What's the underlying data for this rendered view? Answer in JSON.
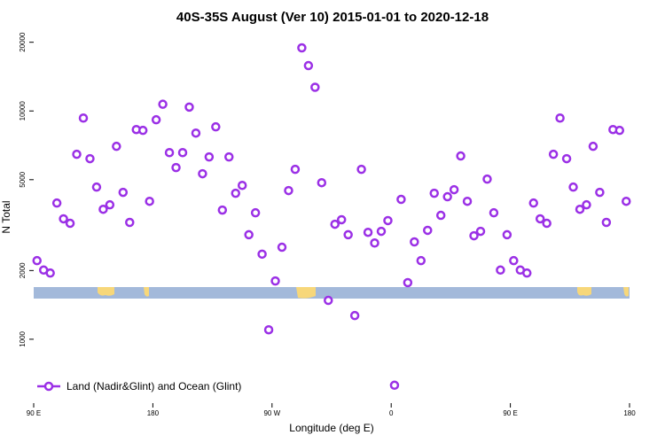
{
  "chart_data": {
    "type": "scatter",
    "title": "40S-35S August (Ver 10)   2015-01-01 to 2020-12-18",
    "x_label": "Longitude (deg E)",
    "y_label": "N Total",
    "log_y": true,
    "xlim": [
      90,
      540
    ],
    "ylim": [
      525,
      22400
    ],
    "xticks": [
      {
        "value": 90,
        "label": "90 E"
      },
      180,
      {
        "value": 270,
        "label": "90 W"
      },
      {
        "value": 360,
        "label": "0"
      },
      {
        "value": 450,
        "label": "90 E"
      },
      {
        "value": 540,
        "label": "180"
      }
    ],
    "yticks": [
      1000,
      2000,
      5000,
      10000,
      20000
    ],
    "legend": "bottom-left",
    "series": [
      {
        "name": "Land (Nadir&Glint) and Ocean (Glint)",
        "color": "#9b30e6",
        "x": [
          92.5,
          97.5,
          102.5,
          107.5,
          112.5,
          117.5,
          122.5,
          127.5,
          132.5,
          137.5,
          142.5,
          147.5,
          152.5,
          157.5,
          162.5,
          167.5,
          172.5,
          177.5,
          182.5,
          187.5,
          192.5,
          197.5,
          202.5,
          207.5,
          212.5,
          217.5,
          222.5,
          227.5,
          232.5,
          237.5,
          242.5,
          247.5,
          252.5,
          257.5,
          262.5,
          267.5,
          272.5,
          277.5,
          282.5,
          287.5,
          292.5,
          297.5,
          302.5,
          307.5,
          312.5,
          317.5,
          322.5,
          327.5,
          332.5,
          337.5,
          342.5,
          347.5,
          352.5,
          357.5,
          362.5,
          367.5,
          372.5,
          377.5,
          382.5,
          387.5,
          392.5,
          397.5,
          402.5,
          407.5,
          412.5,
          417.5,
          422.5,
          427.5,
          432.5,
          437.5,
          442.5,
          447.5,
          452.5,
          457.5,
          462.5,
          467.5,
          472.5,
          477.5,
          482.5,
          487.5,
          492.5,
          497.5,
          502.5,
          507.5,
          512.5,
          517.5,
          522.5,
          527.5,
          532.5,
          537.5
        ],
        "values": [
          2210,
          2010,
          1950,
          3950,
          3370,
          3220,
          6460,
          9310,
          6180,
          4640,
          3710,
          3880,
          7000,
          4400,
          3250,
          8290,
          8220,
          4020,
          9150,
          10700,
          6570,
          5650,
          6570,
          10400,
          8000,
          5310,
          6290,
          8520,
          3680,
          6290,
          4360,
          4720,
          2870,
          3580,
          2360,
          1100,
          1800,
          2530,
          4480,
          5550,
          18900,
          15800,
          12700,
          4850,
          1480,
          3190,
          3340,
          2870,
          1270,
          5550,
          2940,
          2640,
          2970,
          3310,
          629,
          4100,
          1770,
          2670,
          2210,
          3000,
          4360,
          3490,
          4210,
          4520,
          6350,
          4020,
          2840,
          2970,
          5030,
          3580,
          2010,
          2870,
          2210,
          2010,
          1950,
          3950,
          3370,
          3220,
          6460,
          9310,
          6180,
          4640,
          3710,
          3880,
          7000,
          4400,
          3250,
          8290,
          8220,
          4020
        ]
      }
    ]
  }
}
